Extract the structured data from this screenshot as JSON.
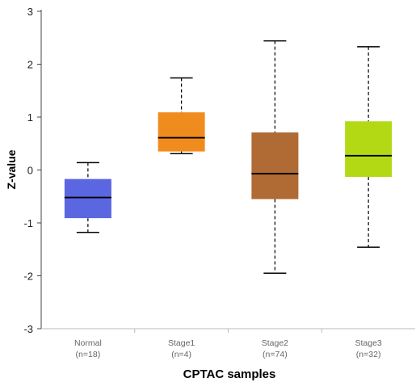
{
  "chart_data": {
    "type": "boxplot",
    "xlabel": "CPTAC samples",
    "ylabel": "Z-value",
    "ylim": [
      -3,
      3
    ],
    "yticks": [
      -3,
      -2,
      -1,
      0,
      1,
      2,
      3
    ],
    "grid": false,
    "legend": "none",
    "categories": [
      {
        "name": "Normal",
        "n_label": "(n=18)",
        "color": "#5a67e0",
        "whisker_low": -1.18,
        "q1": -0.91,
        "median": -0.52,
        "q3": -0.17,
        "whisker_high": 0.14
      },
      {
        "name": "Stage1",
        "n_label": "(n=4)",
        "color": "#f08c1e",
        "whisker_low": 0.31,
        "q1": 0.35,
        "median": 0.61,
        "q3": 1.09,
        "whisker_high": 1.74
      },
      {
        "name": "Stage2",
        "n_label": "(n=74)",
        "color": "#b06a34",
        "whisker_low": -1.95,
        "q1": -0.55,
        "median": -0.07,
        "q3": 0.71,
        "whisker_high": 2.44
      },
      {
        "name": "Stage3",
        "n_label": "(n=32)",
        "color": "#b3d914",
        "whisker_low": -1.46,
        "q1": -0.13,
        "median": 0.27,
        "q3": 0.92,
        "whisker_high": 2.33
      }
    ]
  }
}
